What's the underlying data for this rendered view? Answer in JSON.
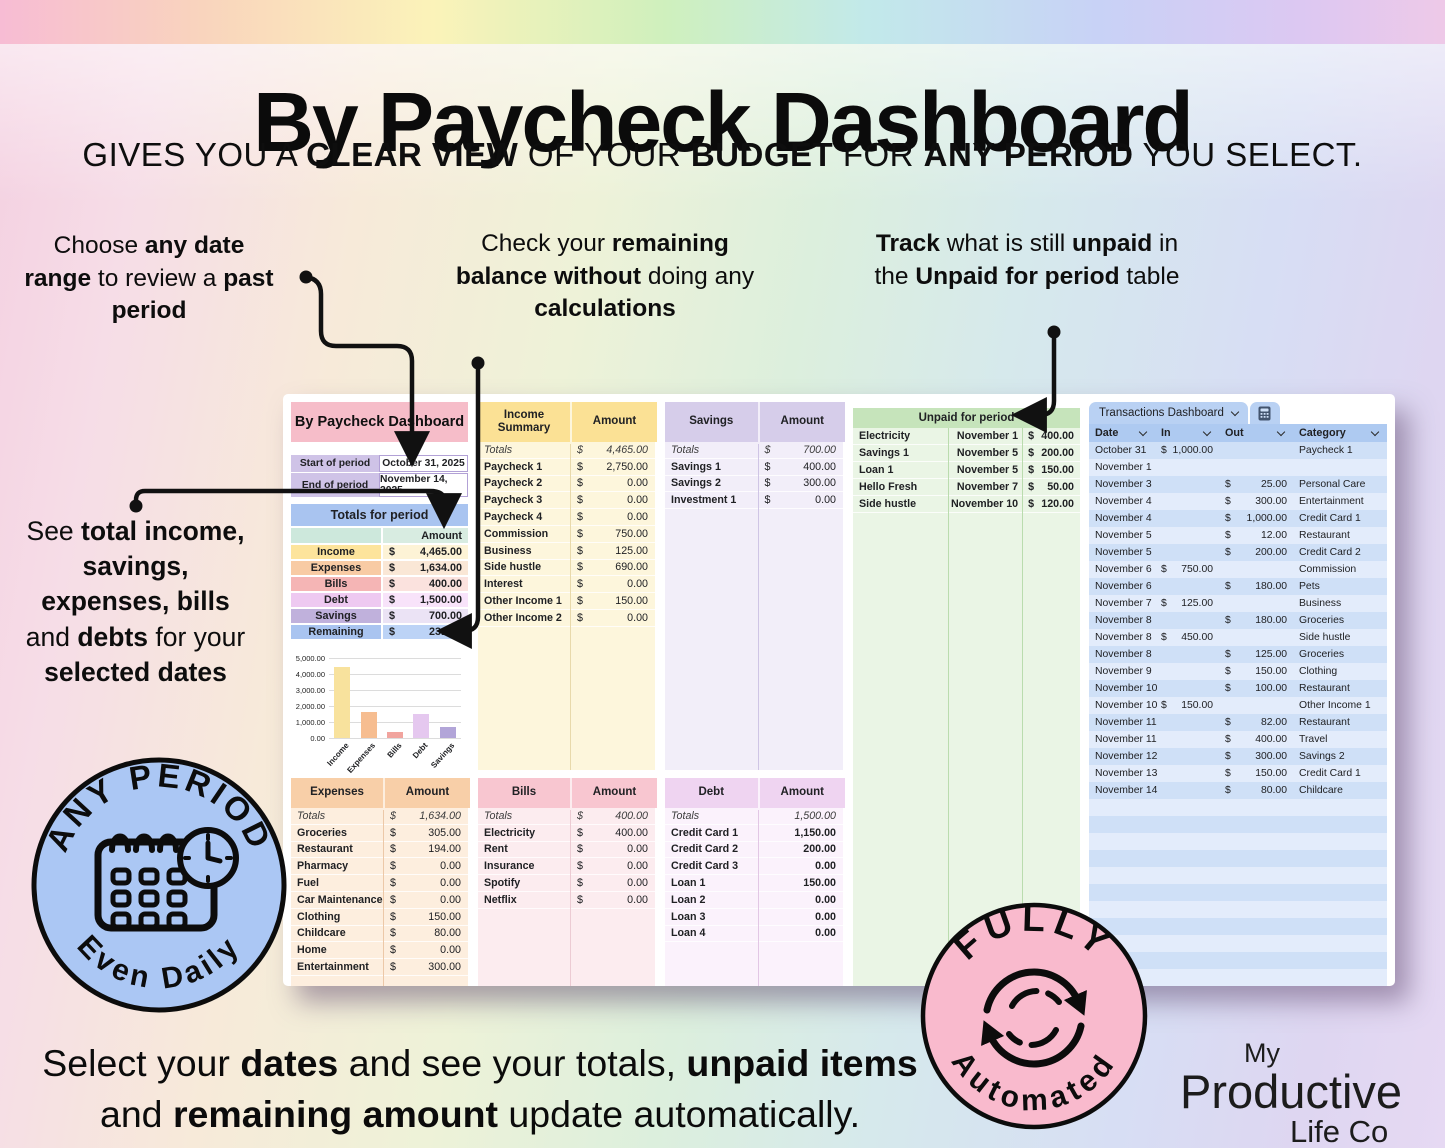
{
  "header": {
    "title": "By Paycheck Dashboard",
    "subtitle": [
      {
        "t": "GIVES YOU A "
      },
      {
        "t": "CLEAR VIEW",
        "b": true
      },
      {
        "t": " OF YOUR "
      },
      {
        "t": "BUDGET",
        "b": true
      },
      {
        "t": " FOR "
      },
      {
        "t": "ANY PERIOD",
        "b": true
      },
      {
        "t": " YOU SELECT."
      }
    ]
  },
  "annotations": {
    "date_range": [
      {
        "t": "Choose "
      },
      {
        "t": "any date range",
        "b": true
      },
      {
        "t": " to review a "
      },
      {
        "t": "past period",
        "b": true
      }
    ],
    "remaining": [
      {
        "t": "Check your "
      },
      {
        "t": "remaining balance without",
        "b": true
      },
      {
        "t": " doing any "
      },
      {
        "t": "calculations",
        "b": true
      }
    ],
    "unpaid": [
      {
        "t": "Track",
        "b": true
      },
      {
        "t": " what is still "
      },
      {
        "t": "unpaid",
        "b": true
      },
      {
        "t": " in the "
      },
      {
        "t": "Unpaid for period",
        "b": true
      },
      {
        "t": " table"
      }
    ],
    "totals": [
      {
        "t": "See "
      },
      {
        "t": "total income, savings, expenses, bills",
        "b": true
      },
      {
        "t": " and "
      },
      {
        "t": "debts",
        "b": true
      },
      {
        "t": " for your "
      },
      {
        "t": "selected dates",
        "b": true
      }
    ]
  },
  "bottom_text": [
    {
      "t": "Select your "
    },
    {
      "t": "dates",
      "b": true
    },
    {
      "t": " and see your totals, "
    },
    {
      "t": "unpaid items",
      "b": true
    },
    {
      "t": " and "
    },
    {
      "t": "remaining amount",
      "b": true
    },
    {
      "t": " update automatically."
    }
  ],
  "badges": {
    "any_period": {
      "top": "ANY PERIOD",
      "bottom": "Even Daily",
      "fill": "#abc7f4",
      "icon": "calendar-clock-icon"
    },
    "automated": {
      "top": "FULLY",
      "bottom": "Automated",
      "fill": "#f9bacd",
      "icon": "sync-arrows-icon"
    }
  },
  "logo": {
    "line1": "My",
    "line2": "Productive",
    "line3": "Life Co"
  },
  "sheet": {
    "title": "By Paycheck Dashboard",
    "period": {
      "start_label": "Start of period",
      "start_value": "October 31, 2025",
      "end_label": "End of period",
      "end_value": "November 14, 2025"
    },
    "totals": {
      "title": "Totals for period",
      "amount_header": "Amount",
      "rows": [
        {
          "label": "Income",
          "value": "4,465.00",
          "lab_bg": "#fde49c",
          "val_bg": "#fdf3d6"
        },
        {
          "label": "Expenses",
          "value": "1,634.00",
          "lab_bg": "#f8cba4",
          "val_bg": "#fae7d6"
        },
        {
          "label": "Bills",
          "value": "400.00",
          "lab_bg": "#f5b5b5",
          "val_bg": "#fbe2de"
        },
        {
          "label": "Debt",
          "value": "1,500.00",
          "lab_bg": "#eec9f1",
          "val_bg": "#f8e3fa"
        },
        {
          "label": "Savings",
          "value": "700.00",
          "lab_bg": "#c0b1dc",
          "val_bg": "#ebe3f5"
        },
        {
          "label": "Remaining",
          "value": "231.00",
          "lab_bg": "#a9c4f0",
          "val_bg": "#bcd3f6"
        }
      ]
    },
    "income": {
      "header": "Income Summary",
      "amount_header": "Amount",
      "rows": [
        {
          "label": "Totals",
          "value": "4,465.00",
          "total": true
        },
        {
          "label": "Paycheck 1",
          "value": "2,750.00"
        },
        {
          "label": "Paycheck 2",
          "value": "0.00"
        },
        {
          "label": "Paycheck 3",
          "value": "0.00"
        },
        {
          "label": "Paycheck 4",
          "value": "0.00"
        },
        {
          "label": "Commission",
          "value": "750.00"
        },
        {
          "label": "Business",
          "value": "125.00"
        },
        {
          "label": "Side hustle",
          "value": "690.00"
        },
        {
          "label": "Interest",
          "value": "0.00"
        },
        {
          "label": "Other Income 1",
          "value": "150.00"
        },
        {
          "label": "Other Income 2",
          "value": "0.00"
        }
      ]
    },
    "savings": {
      "header": "Savings",
      "amount_header": "Amount",
      "rows": [
        {
          "label": "Totals",
          "value": "700.00",
          "total": true
        },
        {
          "label": "Savings 1",
          "value": "400.00"
        },
        {
          "label": "Savings 2",
          "value": "300.00"
        },
        {
          "label": "Investment 1",
          "value": "0.00"
        }
      ]
    },
    "unpaid": {
      "title": "Unpaid for period",
      "rows": [
        {
          "label": "Electricity",
          "date": "November 1",
          "value": "400.00"
        },
        {
          "label": "Savings 1",
          "date": "November 5",
          "value": "200.00"
        },
        {
          "label": "Loan 1",
          "date": "November 5",
          "value": "150.00"
        },
        {
          "label": "Hello Fresh",
          "date": "November 7",
          "value": "50.00"
        },
        {
          "label": "Side hustle",
          "date": "November 10",
          "value": "120.00"
        }
      ]
    },
    "expenses": {
      "header": "Expenses",
      "amount_header": "Amount",
      "rows": [
        {
          "label": "Totals",
          "value": "1,634.00",
          "total": true
        },
        {
          "label": "Groceries",
          "value": "305.00"
        },
        {
          "label": "Restaurant",
          "value": "194.00"
        },
        {
          "label": "Pharmacy",
          "value": "0.00"
        },
        {
          "label": "Fuel",
          "value": "0.00"
        },
        {
          "label": "Car Maintenance",
          "value": "0.00"
        },
        {
          "label": "Clothing",
          "value": "150.00"
        },
        {
          "label": "Childcare",
          "value": "80.00"
        },
        {
          "label": "Home",
          "value": "0.00"
        },
        {
          "label": "Entertainment",
          "value": "300.00"
        }
      ]
    },
    "bills": {
      "header": "Bills",
      "amount_header": "Amount",
      "rows": [
        {
          "label": "Totals",
          "value": "400.00",
          "total": true
        },
        {
          "label": "Electricity",
          "value": "400.00"
        },
        {
          "label": "Rent",
          "value": "0.00"
        },
        {
          "label": "Insurance",
          "value": "0.00"
        },
        {
          "label": "Spotify",
          "value": "0.00"
        },
        {
          "label": "Netflix",
          "value": "0.00"
        }
      ]
    },
    "debt": {
      "header": "Debt",
      "amount_header": "Amount",
      "rows": [
        {
          "label": "Totals",
          "value": "1,500.00",
          "total": true
        },
        {
          "label": "Credit Card 1",
          "value": "1,150.00"
        },
        {
          "label": "Credit Card 2",
          "value": "200.00"
        },
        {
          "label": "Credit Card 3",
          "value": "0.00"
        },
        {
          "label": "Loan 1",
          "value": "150.00"
        },
        {
          "label": "Loan 2",
          "value": "0.00"
        },
        {
          "label": "Loan 3",
          "value": "0.00"
        },
        {
          "label": "Loan 4",
          "value": "0.00"
        }
      ]
    },
    "transactions": {
      "tab": "Transactions Dashboard",
      "tab_icon": "calculator-icon",
      "column_sort_icon": "chevron-down-icon",
      "columns": [
        "Date",
        "In",
        "Out",
        "Category"
      ],
      "empty_rows": 11,
      "rows": [
        {
          "date": "October 31",
          "in": "1,000.00",
          "out": "",
          "category": "Paycheck 1"
        },
        {
          "date": "November 1",
          "in": "",
          "out": "",
          "category": ""
        },
        {
          "date": "November 3",
          "in": "",
          "out": "25.00",
          "category": "Personal Care"
        },
        {
          "date": "November 4",
          "in": "",
          "out": "300.00",
          "category": "Entertainment"
        },
        {
          "date": "November 4",
          "in": "",
          "out": "1,000.00",
          "category": "Credit Card 1"
        },
        {
          "date": "November 5",
          "in": "",
          "out": "12.00",
          "category": "Restaurant"
        },
        {
          "date": "November 5",
          "in": "",
          "out": "200.00",
          "category": "Credit Card 2"
        },
        {
          "date": "November 6",
          "in": "750.00",
          "out": "",
          "category": "Commission"
        },
        {
          "date": "November 6",
          "in": "",
          "out": "180.00",
          "category": "Pets"
        },
        {
          "date": "November 7",
          "in": "125.00",
          "out": "",
          "category": "Business"
        },
        {
          "date": "November 8",
          "in": "",
          "out": "180.00",
          "category": "Groceries"
        },
        {
          "date": "November 8",
          "in": "450.00",
          "out": "",
          "category": "Side hustle"
        },
        {
          "date": "November 8",
          "in": "",
          "out": "125.00",
          "category": "Groceries"
        },
        {
          "date": "November 9",
          "in": "",
          "out": "150.00",
          "category": "Clothing"
        },
        {
          "date": "November 10",
          "in": "",
          "out": "100.00",
          "category": "Restaurant"
        },
        {
          "date": "November 10",
          "in": "150.00",
          "out": "",
          "category": "Other Income 1"
        },
        {
          "date": "November 11",
          "in": "",
          "out": "82.00",
          "category": "Restaurant"
        },
        {
          "date": "November 11",
          "in": "",
          "out": "400.00",
          "category": "Travel"
        },
        {
          "date": "November 12",
          "in": "",
          "out": "300.00",
          "category": "Savings 2"
        },
        {
          "date": "November 13",
          "in": "",
          "out": "150.00",
          "category": "Credit Card 1"
        },
        {
          "date": "November 14",
          "in": "",
          "out": "80.00",
          "category": "Childcare"
        }
      ]
    }
  },
  "chart_data": {
    "type": "bar",
    "title": "",
    "categories": [
      "Income",
      "Expenses",
      "Bills",
      "Debt",
      "Savings"
    ],
    "values": [
      4465,
      1634,
      400,
      1500,
      700
    ],
    "bar_colors": [
      "#f8e29d",
      "#f6bd90",
      "#f1a49e",
      "#e5c8ef",
      "#b2a5d8"
    ],
    "xlabel": "",
    "ylabel": "",
    "ylim": [
      0,
      5000
    ],
    "ytick_labels": [
      "5,000.00",
      "4,000.00",
      "3,000.00",
      "2,000.00",
      "1,000.00",
      "0.00"
    ],
    "grid": true,
    "legend": false
  }
}
